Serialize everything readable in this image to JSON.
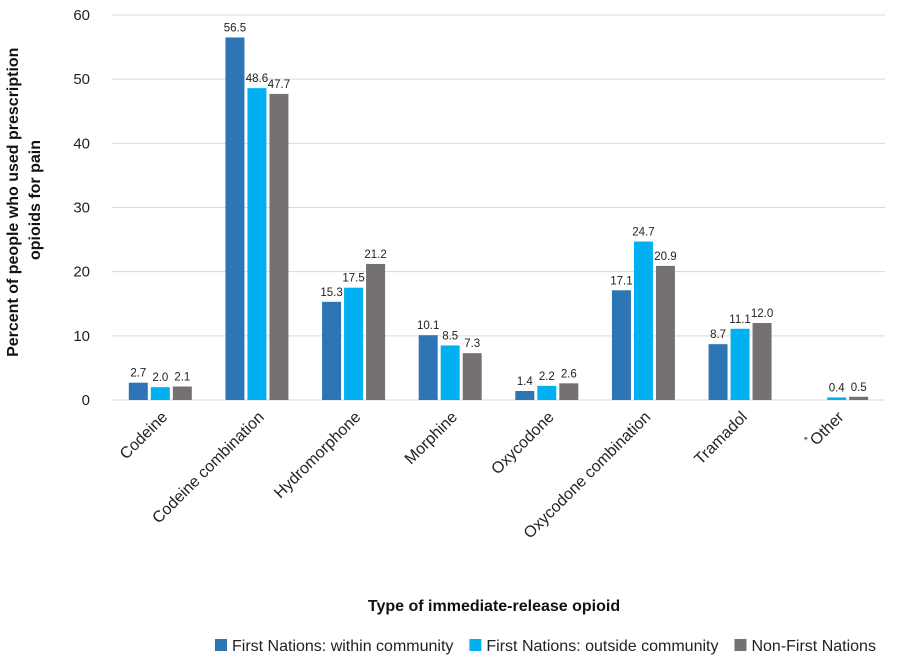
{
  "chart_data": {
    "type": "bar",
    "categories": [
      "Codeine",
      "Codeine combination",
      "Hydromorphone",
      "Morphine",
      "Oxycodone",
      "Oxycodone combination",
      "Tramadol",
      "Other"
    ],
    "category_superscripts": [
      "",
      "",
      "",
      "",
      "",
      "",
      "",
      "*"
    ],
    "series": [
      {
        "name": "First Nations: within community",
        "color": "#2E75B6",
        "values": [
          2.7,
          56.5,
          15.3,
          10.1,
          1.4,
          17.1,
          8.7,
          null
        ],
        "labels": [
          "2.7",
          "56.5",
          "15.3",
          "10.1",
          "1.4",
          "17.1",
          "8.7",
          ""
        ]
      },
      {
        "name": "First Nations: outside community",
        "color": "#00B0F0",
        "values": [
          2.0,
          48.6,
          17.5,
          8.5,
          2.2,
          24.7,
          11.1,
          0.4
        ],
        "labels": [
          "2.0",
          "48.6",
          "17.5",
          "8.5",
          "2.2",
          "24.7",
          "11.1",
          "0.4"
        ]
      },
      {
        "name": "Non-First Nations",
        "color": "#767171",
        "values": [
          2.1,
          47.7,
          21.2,
          7.3,
          2.6,
          20.9,
          12.0,
          0.5
        ],
        "labels": [
          "2.1",
          "47.7",
          "21.2",
          "7.3",
          "2.6",
          "20.9",
          "12.0",
          "0.5"
        ]
      }
    ],
    "yticks": [
      "0",
      "10",
      "20",
      "30",
      "40",
      "50",
      "60"
    ],
    "ylim": [
      0,
      60
    ],
    "xlabel": "Type of immediate-release opioid",
    "ylabel_lines": [
      "Percent of people who used prescription",
      "opioids for pain"
    ],
    "grid": true,
    "legend_position": "bottom"
  }
}
